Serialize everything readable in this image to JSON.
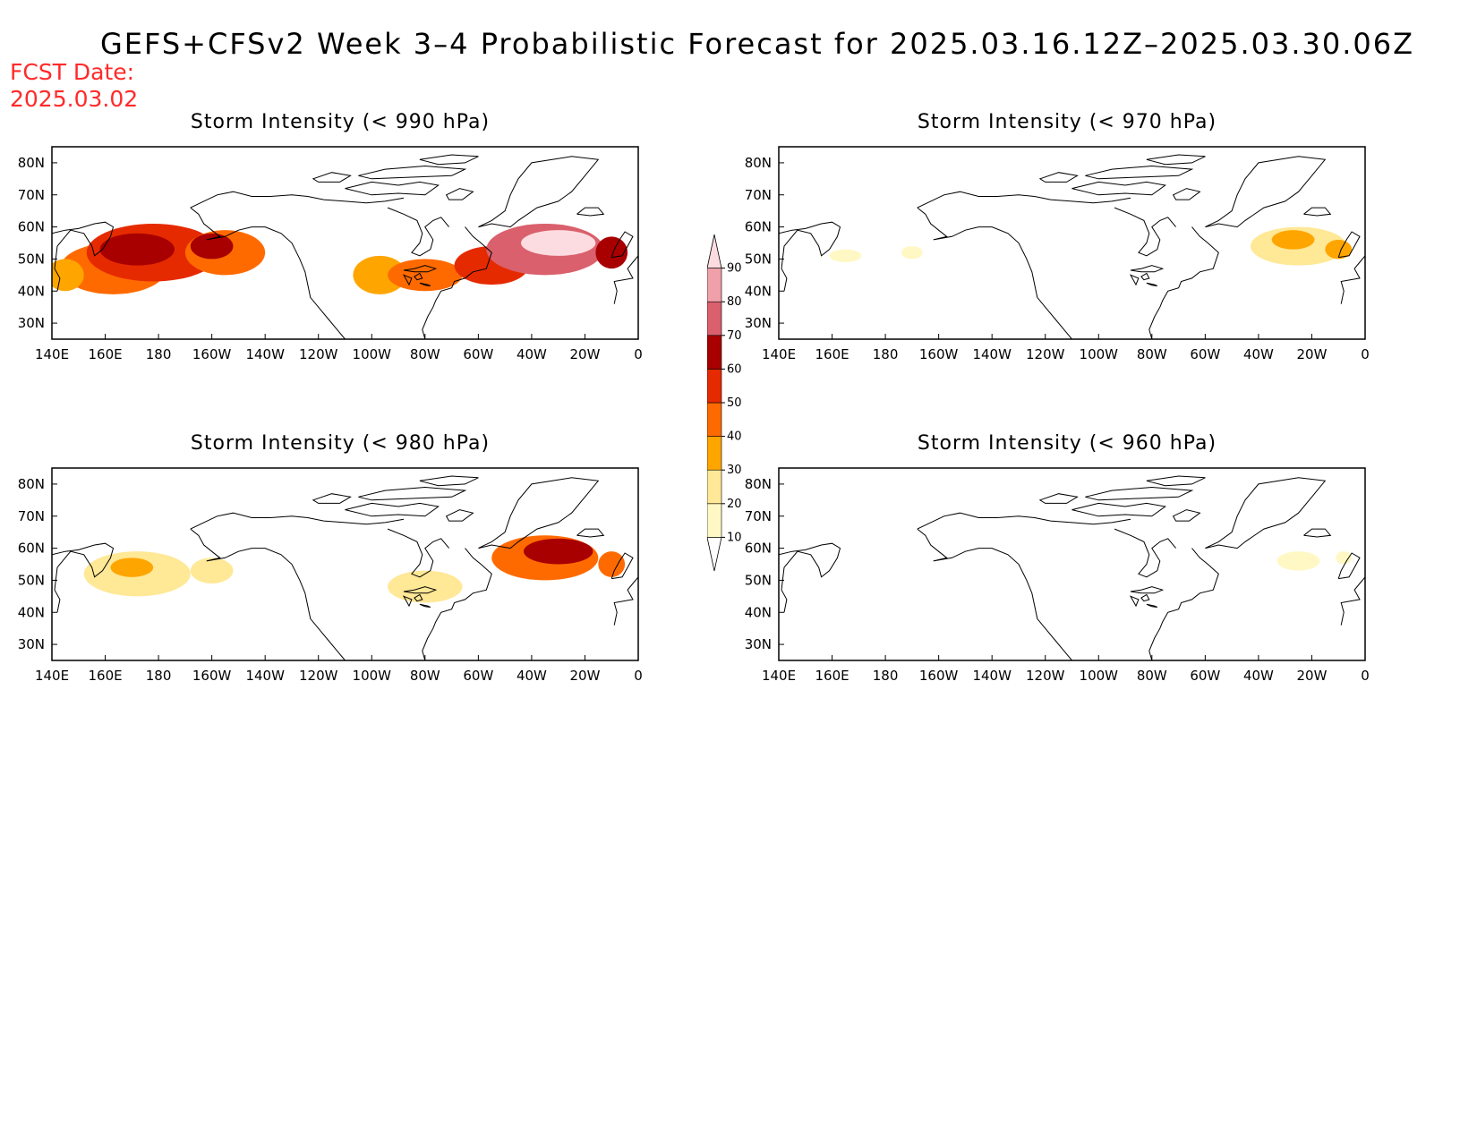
{
  "title": "GEFS+CFSv2 Week 3–4 Probabilistic Forecast for 2025.03.16.12Z–2025.03.30.06Z",
  "fcst_label": "FCST Date:",
  "fcst_date": "2025.03.02",
  "panels": [
    {
      "id": "p990",
      "title": "Storm Intensity (< 990 hPa)"
    },
    {
      "id": "p970",
      "title": "Storm Intensity (< 970 hPa)"
    },
    {
      "id": "p980",
      "title": "Storm Intensity (< 980 hPa)"
    },
    {
      "id": "p960",
      "title": "Storm Intensity (< 960 hPa)"
    }
  ],
  "axes": {
    "x_ticks": [
      "140E",
      "160E",
      "180",
      "160W",
      "140W",
      "120W",
      "100W",
      "80W",
      "60W",
      "40W",
      "20W",
      "0"
    ],
    "y_ticks": [
      "80N",
      "70N",
      "60N",
      "50N",
      "40N",
      "30N"
    ],
    "lon_range": [
      140,
      360
    ],
    "lat_range": [
      25,
      85
    ]
  },
  "colorbar": {
    "levels": [
      "10",
      "20",
      "30",
      "40",
      "50",
      "60",
      "70",
      "80",
      "90"
    ],
    "colors": [
      "#fff8c4",
      "#ffe896",
      "#ffa500",
      "#ff6a00",
      "#e62a00",
      "#a80000",
      "#d9606c",
      "#f0a0a8",
      "#fcdce0"
    ]
  },
  "probability_blobs": {
    "p990": [
      {
        "lon": 163,
        "lat": 47,
        "rx": 20,
        "ry": 8,
        "level": 3
      },
      {
        "lon": 178,
        "lat": 52,
        "rx": 25,
        "ry": 9,
        "level": 4
      },
      {
        "lon": 172,
        "lat": 53,
        "rx": 14,
        "ry": 5,
        "level": 5
      },
      {
        "lon": 205,
        "lat": 52,
        "rx": 15,
        "ry": 7,
        "level": 3
      },
      {
        "lon": 200,
        "lat": 54,
        "rx": 8,
        "ry": 4,
        "level": 5
      },
      {
        "lon": 145,
        "lat": 45,
        "rx": 7,
        "ry": 5,
        "level": 2
      },
      {
        "lon": 263,
        "lat": 45,
        "rx": 10,
        "ry": 6,
        "level": 2
      },
      {
        "lon": 280,
        "lat": 45,
        "rx": 14,
        "ry": 5,
        "level": 3
      },
      {
        "lon": 305,
        "lat": 48,
        "rx": 14,
        "ry": 6,
        "level": 4
      },
      {
        "lon": 325,
        "lat": 53,
        "rx": 22,
        "ry": 8,
        "level": 6
      },
      {
        "lon": 330,
        "lat": 55,
        "rx": 14,
        "ry": 4,
        "level": 8
      },
      {
        "lon": 350,
        "lat": 52,
        "rx": 6,
        "ry": 5,
        "level": 5
      }
    ],
    "p970": [
      {
        "lon": 190,
        "lat": 52,
        "rx": 4,
        "ry": 2,
        "level": 0
      },
      {
        "lon": 165,
        "lat": 51,
        "rx": 6,
        "ry": 2,
        "level": 0
      },
      {
        "lon": 335,
        "lat": 54,
        "rx": 18,
        "ry": 6,
        "level": 1
      },
      {
        "lon": 333,
        "lat": 56,
        "rx": 8,
        "ry": 3,
        "level": 2
      },
      {
        "lon": 350,
        "lat": 53,
        "rx": 5,
        "ry": 3,
        "level": 2
      }
    ],
    "p980": [
      {
        "lon": 172,
        "lat": 52,
        "rx": 20,
        "ry": 7,
        "level": 1
      },
      {
        "lon": 170,
        "lat": 54,
        "rx": 8,
        "ry": 3,
        "level": 2
      },
      {
        "lon": 200,
        "lat": 53,
        "rx": 8,
        "ry": 4,
        "level": 1
      },
      {
        "lon": 280,
        "lat": 48,
        "rx": 14,
        "ry": 5,
        "level": 1
      },
      {
        "lon": 325,
        "lat": 57,
        "rx": 20,
        "ry": 7,
        "level": 3
      },
      {
        "lon": 330,
        "lat": 59,
        "rx": 13,
        "ry": 4,
        "level": 5
      },
      {
        "lon": 350,
        "lat": 55,
        "rx": 5,
        "ry": 4,
        "level": 3
      }
    ],
    "p960": [
      {
        "lon": 335,
        "lat": 56,
        "rx": 8,
        "ry": 3,
        "level": 0
      },
      {
        "lon": 352,
        "lat": 57,
        "rx": 3,
        "ry": 2,
        "level": 0
      }
    ]
  }
}
